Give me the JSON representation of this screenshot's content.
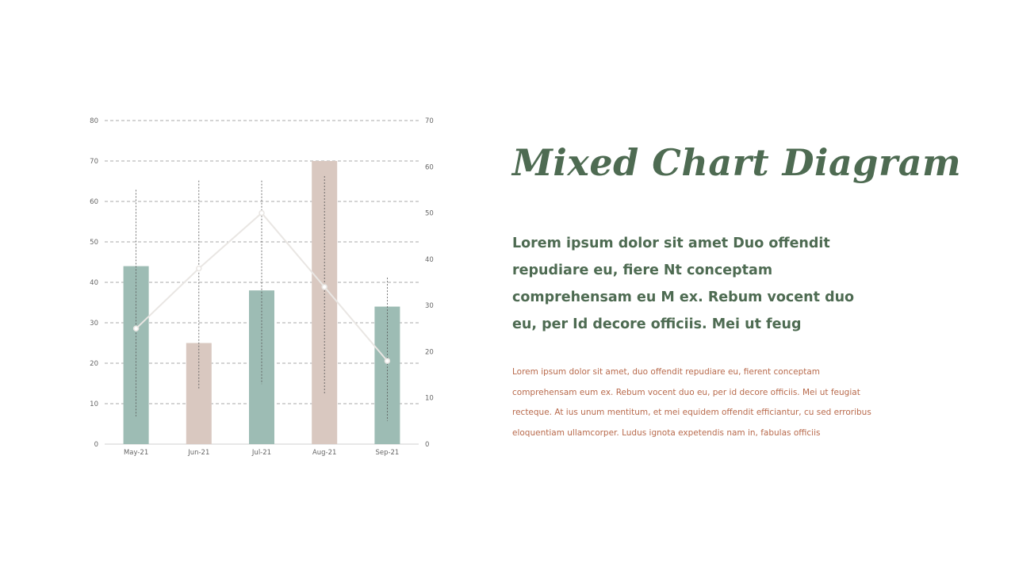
{
  "title": "Mixed Chart Diagram",
  "lead_text": "Lorem ipsum dolor sit amet Duo offendit repudiare eu, fiere Nt conceptam comprehensam eu M ex. Rebum vocent duo eu, per Id decore officiis. Mei ut feug",
  "body_text": "Lorem ipsum dolor sit amet, duo offendit repudiare eu, fierent conceptam comprehensam eum ex. Rebum vocent duo eu, per id decore officiis. Mei ut feugiat recteque. At ius unum mentitum, et mei equidem offendit efficiantur, cu sed erroribus eloquentiam ullamcorper. Ludus ignota expetendis nam in, fabulas officiis",
  "colors": {
    "accent_green": "#4e6b52",
    "body_orange": "#b86a4c",
    "bar_green": "#9dbcb4",
    "bar_beige": "#d9c8c0",
    "line": "#e9e6e3"
  },
  "chart_data": {
    "type": "bar",
    "categories": [
      "May-21",
      "Jun-21",
      "Jul-21",
      "Aug-21",
      "Sep-21"
    ],
    "series": [
      {
        "type": "bar",
        "axis": "left",
        "values": [
          44,
          25,
          38,
          70,
          34
        ],
        "colors": [
          "#9dbcb4",
          "#d9c8c0",
          "#9dbcb4",
          "#d9c8c0",
          "#9dbcb4"
        ]
      },
      {
        "type": "line",
        "axis": "right",
        "values": [
          25,
          38,
          50,
          34,
          18
        ]
      },
      {
        "type": "range",
        "axis": "right",
        "lows": [
          6,
          12,
          13,
          11,
          5
        ],
        "highs": [
          55,
          57,
          57,
          58,
          36
        ]
      }
    ],
    "left_axis": {
      "ylim": [
        0,
        80
      ],
      "ticks": [
        "0",
        "10",
        "20",
        "30",
        "40",
        "50",
        "60",
        "70",
        "80"
      ]
    },
    "right_axis": {
      "ylim": [
        0,
        70
      ],
      "ticks": [
        "0",
        "10",
        "20",
        "30",
        "40",
        "50",
        "60",
        "70"
      ]
    },
    "grid": true
  }
}
